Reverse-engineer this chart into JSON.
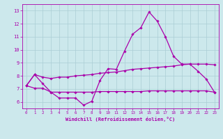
{
  "xlabel": "Windchill (Refroidissement éolien,°C)",
  "background_color": "#cce8ec",
  "grid_color": "#aacdd4",
  "line_color": "#aa00aa",
  "xlim": [
    -0.5,
    23.5
  ],
  "ylim": [
    5.5,
    13.5
  ],
  "yticks": [
    6,
    7,
    8,
    9,
    10,
    11,
    12,
    13
  ],
  "xticks": [
    0,
    1,
    2,
    3,
    4,
    5,
    6,
    7,
    8,
    9,
    10,
    11,
    12,
    13,
    14,
    15,
    16,
    17,
    18,
    19,
    20,
    21,
    22,
    23
  ],
  "line1_x": [
    0,
    1,
    2,
    3,
    4,
    5,
    6,
    7,
    8,
    9,
    10,
    11,
    12,
    13,
    14,
    15,
    16,
    17,
    18,
    19,
    20,
    21,
    22,
    23
  ],
  "line1_y": [
    7.25,
    8.1,
    7.4,
    6.75,
    6.3,
    6.3,
    6.3,
    5.75,
    6.05,
    7.65,
    8.55,
    8.5,
    9.9,
    11.2,
    11.7,
    12.9,
    12.2,
    11.0,
    9.5,
    8.9,
    8.9,
    8.35,
    7.75,
    6.75
  ],
  "line2_x": [
    0,
    1,
    2,
    3,
    4,
    5,
    6,
    7,
    8,
    9,
    10,
    11,
    12,
    13,
    14,
    15,
    16,
    17,
    18,
    19,
    20,
    21,
    22,
    23
  ],
  "line2_y": [
    7.25,
    8.1,
    7.9,
    7.8,
    7.9,
    7.9,
    8.0,
    8.05,
    8.1,
    8.2,
    8.25,
    8.3,
    8.4,
    8.5,
    8.55,
    8.6,
    8.65,
    8.7,
    8.75,
    8.85,
    8.9,
    8.9,
    8.9,
    8.85
  ],
  "line3_x": [
    0,
    1,
    2,
    3,
    4,
    5,
    6,
    7,
    8,
    9,
    10,
    11,
    12,
    13,
    14,
    15,
    16,
    17,
    18,
    19,
    20,
    21,
    22,
    23
  ],
  "line3_y": [
    7.25,
    7.05,
    7.05,
    6.75,
    6.75,
    6.75,
    6.75,
    6.75,
    6.75,
    6.8,
    6.8,
    6.8,
    6.8,
    6.8,
    6.8,
    6.85,
    6.85,
    6.85,
    6.85,
    6.85,
    6.85,
    6.85,
    6.85,
    6.75
  ],
  "figwidth": 3.2,
  "figheight": 2.0,
  "dpi": 100
}
